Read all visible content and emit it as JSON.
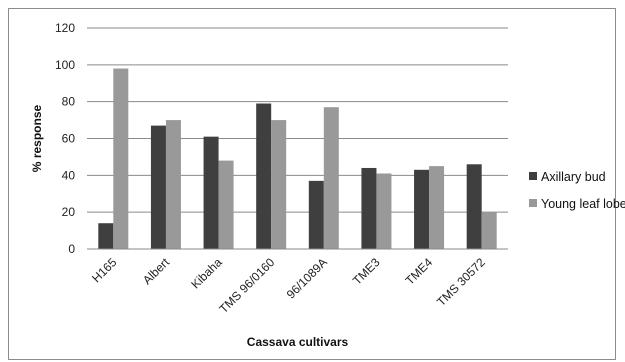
{
  "chart_data": {
    "type": "bar",
    "title": "",
    "xlabel": "Cassava cultivars",
    "ylabel": "% response",
    "ylim": [
      0,
      120
    ],
    "yticks": [
      0,
      20,
      40,
      60,
      80,
      100,
      120
    ],
    "grid": "horizontal",
    "legend_position": "right",
    "categories": [
      "H165",
      "Albert",
      "Kibaha",
      "TMS 96/0160",
      "96/1089A",
      "TME3",
      "TME4",
      "TMS 30572"
    ],
    "series": [
      {
        "name": "Axillary bud",
        "color": "#3f3f3f",
        "values": [
          14,
          67,
          61,
          79,
          37,
          44,
          43,
          46
        ]
      },
      {
        "name": "Young leaf lobe",
        "color": "#999999",
        "values": [
          98,
          70,
          48,
          70,
          77,
          41,
          45,
          20
        ]
      }
    ]
  }
}
